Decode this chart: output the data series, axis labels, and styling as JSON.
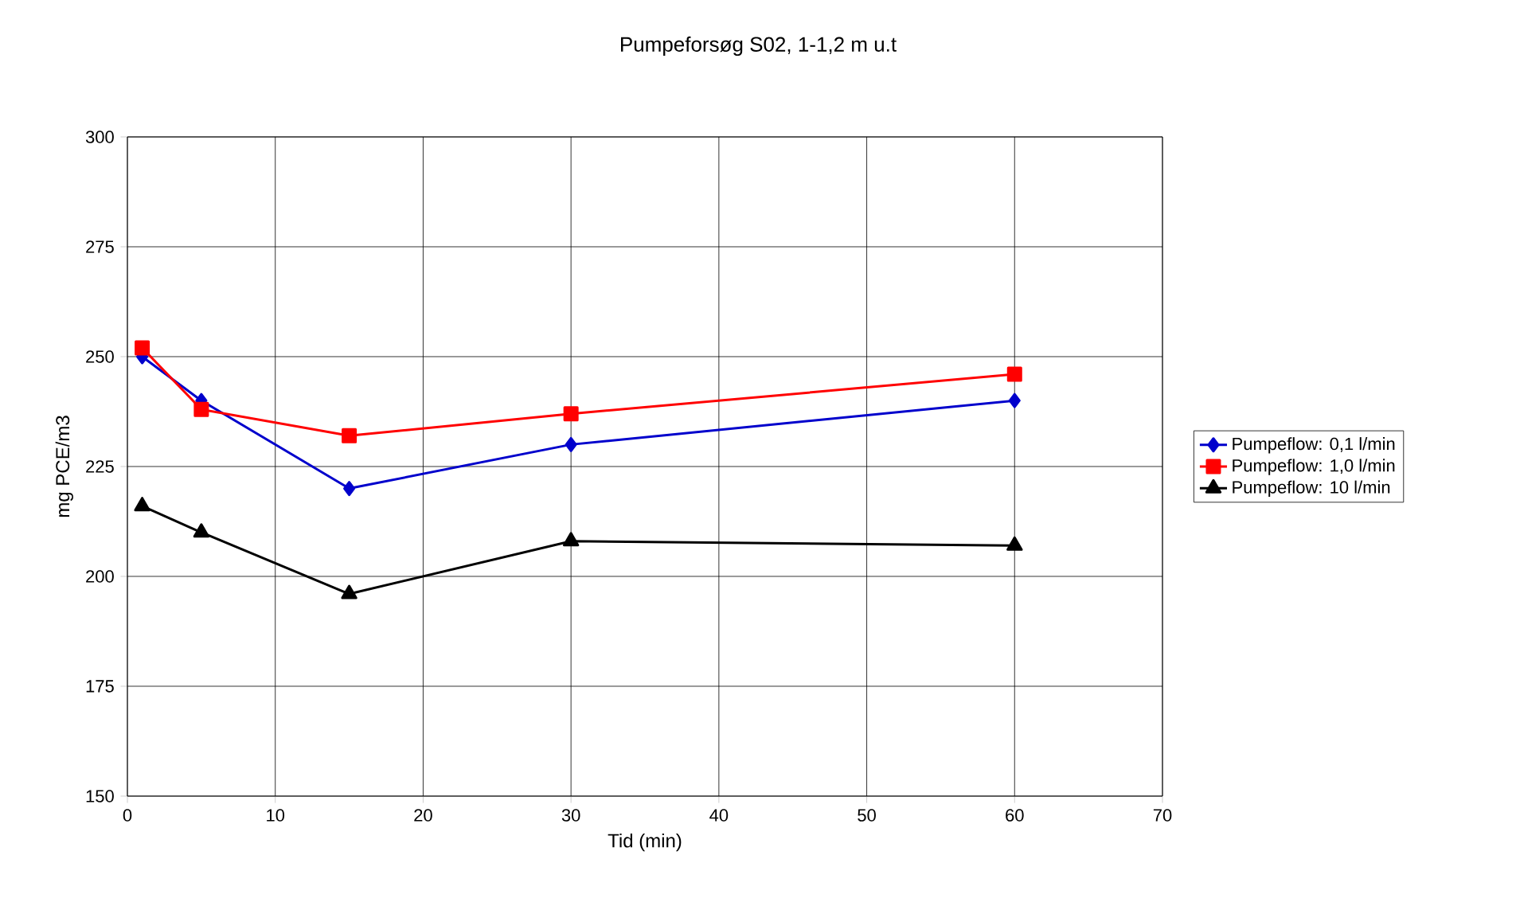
{
  "chart_data": {
    "type": "line",
    "title": "Pumpeforsøg S02, 1-1,2 m u.t",
    "xlabel": "Tid (min)",
    "ylabel": "mg PCE/m3",
    "x": [
      1,
      5,
      15,
      30,
      60
    ],
    "series": [
      {
        "name": "Pumpeflow: 0,1 l/min",
        "color": "#0000cc",
        "marker": "diamond",
        "values": [
          250,
          240,
          220,
          230,
          240
        ]
      },
      {
        "name": "Pumpeflow: 1,0 l/min",
        "color": "#ff0000",
        "marker": "square",
        "values": [
          252,
          238,
          232,
          237,
          246
        ]
      },
      {
        "name": "Pumpeflow: 10 l/min",
        "color": "#000000",
        "marker": "triangle",
        "values": [
          216,
          210,
          196,
          208,
          207
        ]
      }
    ],
    "xlim": [
      0,
      70
    ],
    "xticks": [
      0,
      10,
      20,
      30,
      40,
      50,
      60,
      70
    ],
    "ylim": [
      150,
      300
    ],
    "yticks": [
      150,
      175,
      200,
      225,
      250,
      275,
      300
    ],
    "grid": true,
    "legend": "right",
    "line_style": "solid"
  }
}
